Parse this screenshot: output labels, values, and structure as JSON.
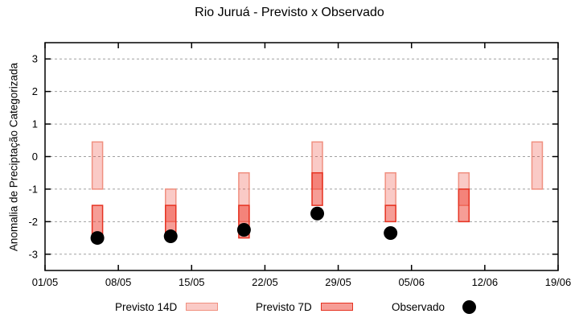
{
  "chart_data": {
    "type": "bar",
    "subtype": "floating-range-bars-with-observation-points",
    "title": "Rio Juruá - Previsto x Observado",
    "ylabel": "Anomalia de Preciptação Categorizada",
    "xlabel": "",
    "ylim": [
      -3.5,
      3.5
    ],
    "yticks": [
      3,
      2,
      1,
      0,
      -1,
      -2,
      -3
    ],
    "x_axis": {
      "tick_labels": [
        "01/05",
        "08/05",
        "15/05",
        "22/05",
        "29/05",
        "05/06",
        "12/06",
        "19/06"
      ],
      "tick_days": [
        0,
        7,
        14,
        21,
        28,
        35,
        42,
        49
      ],
      "range_days": [
        0,
        49
      ]
    },
    "grid": {
      "horizontal": true,
      "style": "dashed"
    },
    "series": [
      {
        "name": "Previsto 14D",
        "type": "range-bar"
      },
      {
        "name": "Previsto 7D",
        "type": "range-bar"
      },
      {
        "name": "Observado",
        "type": "point"
      }
    ],
    "legend_position": "bottom",
    "groups": [
      {
        "date": "06/05",
        "day": 5,
        "previsto_14d": [
          0.45,
          -1.0
        ],
        "previsto_7d": [
          -1.5,
          -2.5
        ],
        "observado": -2.5
      },
      {
        "date": "13/05",
        "day": 12,
        "previsto_14d": [
          -1.0,
          -2.0
        ],
        "previsto_7d": [
          -1.5,
          -2.5
        ],
        "observado": -2.45
      },
      {
        "date": "20/05",
        "day": 19,
        "previsto_14d": [
          -0.5,
          -2.0
        ],
        "previsto_7d": [
          -1.5,
          -2.5
        ],
        "observado": -2.25
      },
      {
        "date": "27/05",
        "day": 26,
        "previsto_14d": [
          0.45,
          -1.0
        ],
        "previsto_7d": [
          -0.5,
          -1.5
        ],
        "observado": -1.75
      },
      {
        "date": "03/06",
        "day": 33,
        "previsto_14d": [
          -0.5,
          -1.5
        ],
        "previsto_7d": [
          -1.5,
          -2.0
        ],
        "observado": -2.35
      },
      {
        "date": "10/06",
        "day": 40,
        "previsto_14d": [
          -0.5,
          -1.5
        ],
        "previsto_7d": [
          -1.0,
          -2.0
        ],
        "observado": null
      },
      {
        "date": "17/06",
        "day": 47,
        "previsto_14d": [
          0.45,
          -1.0
        ],
        "previsto_7d": null,
        "observado": null
      }
    ],
    "colors": {
      "previsto_14d_fill": "rgba(238,60,45,0.27)",
      "previsto_14d_border": "#f09080",
      "previsto_7d_fill": "rgba(238,60,45,0.50)",
      "previsto_7d_border": "#e63322",
      "observado": "#000000",
      "grid": "#a0a0a0",
      "axis": "#000000",
      "background": "#ffffff"
    }
  }
}
